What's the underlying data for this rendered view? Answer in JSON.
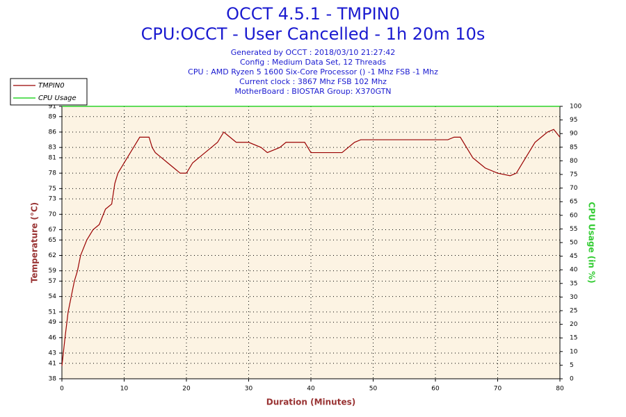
{
  "chart_data": {
    "type": "line",
    "title": "OCCT 4.5.1 - TMPIN0",
    "subtitle": "CPU:OCCT - User Cancelled - 1h 20m 10s",
    "info": [
      "Generated by OCCT : 2018/03/10 21:27:42",
      "Config : Medium Data Set, 12 Threads",
      "CPU : AMD Ryzen 5 1600 Six-Core Processor () -1 Mhz FSB -1 Mhz",
      "Current clock : 3867 Mhz FSB 102 Mhz",
      "MotherBoard : BIOSTAR Group: X370GTN"
    ],
    "xlabel": "Duration (Minutes)",
    "ylabel": "Temperature (°C)",
    "y2label": "CPU Usage (in %)",
    "xlim": [
      0,
      80
    ],
    "xticks": [
      0,
      10,
      20,
      30,
      40,
      50,
      60,
      70,
      80
    ],
    "ylim": [
      38,
      91
    ],
    "yticks": [
      38,
      41,
      43,
      46,
      49,
      51,
      54,
      57,
      59,
      62,
      65,
      67,
      70,
      73,
      75,
      78,
      81,
      83,
      86,
      89,
      91
    ],
    "y2lim": [
      0,
      100
    ],
    "y2ticks": [
      0,
      5,
      10,
      15,
      20,
      25,
      30,
      35,
      40,
      45,
      50,
      55,
      60,
      65,
      70,
      75,
      80,
      85,
      90,
      95,
      100
    ],
    "grid": true,
    "legend": "top-left",
    "series": [
      {
        "name": "TMPIN0",
        "color": "#990000",
        "x": [
          0,
          0.5,
          1,
          1.5,
          2,
          2.5,
          3,
          4,
          5,
          6,
          7,
          8,
          8.5,
          9,
          10,
          11,
          12,
          12.5,
          14,
          14.5,
          15,
          16,
          17,
          18,
          19,
          20,
          21,
          22,
          23,
          24,
          25,
          26,
          27,
          28,
          30,
          32,
          33,
          35,
          36,
          38,
          39,
          40,
          42,
          45,
          46,
          47,
          48,
          55,
          62,
          63,
          64,
          65,
          66,
          67,
          68,
          70,
          72,
          73,
          74,
          75,
          76,
          77,
          78,
          79,
          80
        ],
        "values": [
          40.5,
          46,
          51,
          54,
          57,
          59,
          62,
          65,
          67,
          68,
          71,
          72,
          76,
          78,
          80,
          82,
          84,
          85,
          85,
          83,
          82,
          81,
          80,
          79,
          78,
          78,
          80,
          81,
          82,
          83,
          84,
          86,
          85,
          84,
          84,
          83,
          82,
          83,
          84,
          84,
          84,
          82,
          82,
          82,
          83,
          84,
          84.5,
          84.5,
          84.5,
          85,
          85,
          83,
          81,
          80,
          79,
          78,
          77.5,
          78,
          80,
          82,
          84,
          85,
          86,
          86.5,
          85
        ]
      },
      {
        "name": "CPU Usage",
        "color": "#00cc00",
        "axis": "y2",
        "x": [
          0,
          80
        ],
        "values": [
          100,
          100
        ]
      }
    ]
  }
}
